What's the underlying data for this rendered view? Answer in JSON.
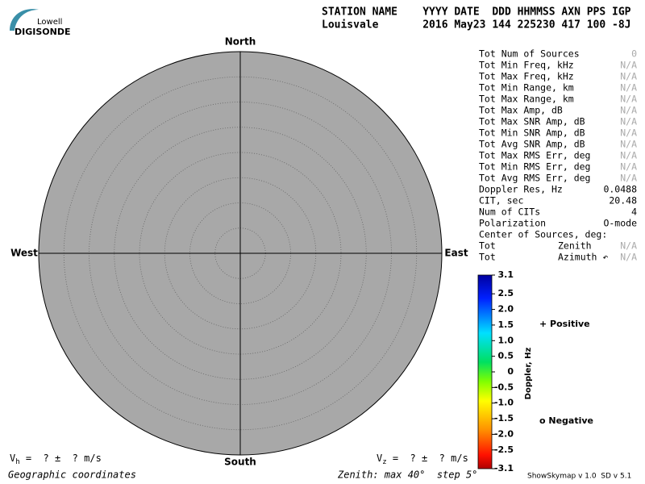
{
  "logo": {
    "small": "Lowell",
    "large": "DIGISONDE"
  },
  "header": {
    "columns": "STATION NAME    YYYY DATE  DDD HHMMSS AXN PPS IGP",
    "values": "Louisvale       2016 May23 144 225230 417 100 -8J"
  },
  "compass": {
    "north": "North",
    "south": "South",
    "west": "West",
    "east": "East"
  },
  "stats": [
    {
      "label": "Tot Num of Sources",
      "value": "0",
      "value_color": "#aaaaaa"
    },
    {
      "label": "Tot Min Freq, kHz",
      "value": "N/A",
      "value_color": "#aaaaaa"
    },
    {
      "label": "Tot Max Freq, kHz",
      "value": "N/A",
      "value_color": "#aaaaaa"
    },
    {
      "label": "Tot Min Range, km",
      "value": "N/A",
      "value_color": "#aaaaaa"
    },
    {
      "label": "Tot Max Range, km",
      "value": "N/A",
      "value_color": "#aaaaaa"
    },
    {
      "label": "Tot Max Amp, dB",
      "value": "N/A",
      "value_color": "#aaaaaa"
    },
    {
      "label": "Tot Max SNR Amp, dB",
      "value": "N/A",
      "value_color": "#aaaaaa"
    },
    {
      "label": "Tot Min SNR Amp, dB",
      "value": "N/A",
      "value_color": "#aaaaaa"
    },
    {
      "label": "Tot Avg SNR Amp, dB",
      "value": "N/A",
      "value_color": "#aaaaaa"
    },
    {
      "label": "Tot Max RMS Err, deg",
      "value": "N/A",
      "value_color": "#aaaaaa"
    },
    {
      "label": "Tot Min RMS Err, deg",
      "value": "N/A",
      "value_color": "#aaaaaa"
    },
    {
      "label": "Tot Avg RMS Err, deg",
      "value": "N/A",
      "value_color": "#aaaaaa"
    },
    {
      "label": "Doppler Res, Hz",
      "value": "0.0488",
      "value_color": "#000000"
    },
    {
      "label": "CIT, sec",
      "value": "20.48",
      "value_color": "#000000"
    },
    {
      "label": "Num of CITs",
      "value": "4",
      "value_color": "#000000"
    },
    {
      "label": "Polarization",
      "value": "O-mode",
      "value_color": "#000000"
    },
    {
      "label": "Center of Sources, deg:"
    },
    {
      "label": "Tot",
      "sublabel": "Zenith",
      "value": "N/A",
      "value_color": "#aaaaaa"
    },
    {
      "label": "Tot",
      "sublabel": "Azimuth ↶",
      "value": "N/A",
      "value_color": "#aaaaaa"
    }
  ],
  "colorbar": {
    "label": "Doppler, Hz",
    "lim": [
      -3.1,
      3.1
    ],
    "ticks": [
      3.1,
      2.5,
      {
        "value": 2,
        "label": "2.0"
      },
      1.5,
      {
        "value": 1,
        "label": "1.0"
      },
      0.5,
      0,
      -0.5,
      {
        "value": -1,
        "label": "-1.0"
      },
      -1.5,
      {
        "value": -2,
        "label": "-2.0"
      },
      -2.5,
      -3.1
    ]
  },
  "legend": {
    "positive": "+ Positive",
    "negative": "o Negative"
  },
  "velocity": {
    "h": {
      "symbol": "V",
      "sub": "h",
      "text": " =  ? ±  ? m/s"
    },
    "z": {
      "symbol": "V",
      "sub": "z",
      "text": " =  ? ±  ? m/s"
    }
  },
  "footer": {
    "coordinates": "Geographic coordinates",
    "zenith": "Zenith: max 40°  step 5°",
    "version": "ShowSkymap v 1.0  SD v 5.1"
  }
}
